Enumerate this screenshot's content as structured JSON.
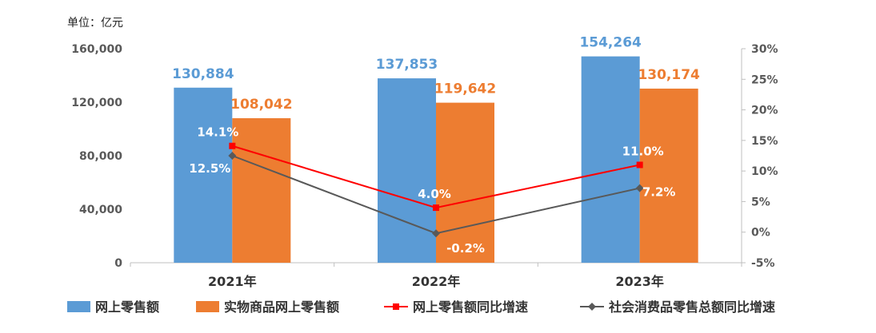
{
  "unit_label": "单位：亿元",
  "chart_data": {
    "type": "bar",
    "categories": [
      "2021年",
      "2022年",
      "2023年"
    ],
    "series": [
      {
        "name": "网上零售额",
        "type": "bar",
        "axis": "left",
        "color": "#5b9bd5",
        "label_color": "#5b9bd5",
        "values": [
          130884,
          137853,
          154264
        ],
        "labels": [
          "130,884",
          "137,853",
          "154,264"
        ]
      },
      {
        "name": "实物商品网上零售额",
        "type": "bar",
        "axis": "left",
        "color": "#ed7d31",
        "label_color": "#ed7d31",
        "values": [
          108042,
          119642,
          130174
        ],
        "labels": [
          "108,042",
          "119,642",
          "130,174"
        ]
      },
      {
        "name": "网上零售额同比增速",
        "type": "line",
        "axis": "right",
        "color": "#ff0000",
        "marker": "square",
        "values": [
          14.1,
          4.0,
          11.0
        ],
        "labels": [
          "14.1%",
          "4.0%",
          "11.0%"
        ]
      },
      {
        "name": "社会消费品零售总额同比增速",
        "type": "line",
        "axis": "right",
        "color": "#595959",
        "marker": "diamond",
        "values": [
          12.5,
          -0.2,
          7.2
        ],
        "labels": [
          "12.5%",
          "-0.2%",
          "7.2%"
        ]
      }
    ],
    "y_left": {
      "ylim": [
        0,
        160000
      ],
      "ticks": [
        "0",
        "40,000",
        "80,000",
        "120,000",
        "160,000"
      ]
    },
    "y_right": {
      "ylim": [
        -5,
        30
      ],
      "ticks": [
        "-5%",
        "0%",
        "5%",
        "10%",
        "15%",
        "20%",
        "25%",
        "30%"
      ]
    },
    "grid": false,
    "legend": "bottom"
  }
}
